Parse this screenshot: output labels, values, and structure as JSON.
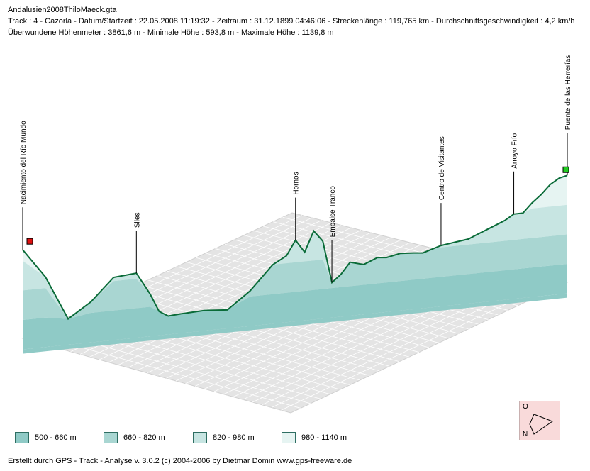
{
  "header": {
    "title": "Andalusien2008ThiloMaeck.gta",
    "line1": "Track : 4 - Cazorla - Datum/Startzeit : 22.05.2008 11:19:32 - Zeitraum : 31.12.1899 04:46:06 - Streckenlänge : 119,765 km - Durchschnittsgeschwindigkeit : 4,2 km/h",
    "line2": "Überwundene Höhenmeter : 3861,6 m  -  Minimale Höhe : 593,8 m  -  Maximale Höhe : 1139,8 m"
  },
  "chart_data": {
    "type": "area",
    "style": "3d elevation profile",
    "x_unit": "km",
    "y_unit": "m",
    "xlim": [
      0,
      119.765
    ],
    "ylim": [
      593.8,
      1139.8
    ],
    "x": [
      0,
      5,
      10,
      15,
      20,
      25,
      28,
      30,
      32,
      35,
      40,
      45,
      50,
      55,
      58,
      60,
      62,
      64,
      66,
      68,
      70,
      72,
      75,
      78,
      80,
      83,
      86,
      88,
      90,
      92,
      95,
      98,
      100,
      103,
      106,
      108,
      110,
      112,
      114,
      116,
      118,
      119.765
    ],
    "elevation_m": [
      1040,
      880,
      640,
      720,
      840,
      850,
      730,
      630,
      600,
      605,
      610,
      600,
      690,
      820,
      860,
      940,
      870,
      980,
      920,
      690,
      730,
      790,
      770,
      800,
      795,
      810,
      805,
      800,
      815,
      830,
      840,
      850,
      870,
      900,
      930,
      960,
      960,
      1010,
      1050,
      1100,
      1130,
      1139.8
    ],
    "waypoints": [
      {
        "name": "Nacimiento del Río Mundo",
        "x": 0
      },
      {
        "name": "Siles",
        "x": 25
      },
      {
        "name": "Hornos",
        "x": 60
      },
      {
        "name": "Embalse Tranco",
        "x": 68
      },
      {
        "name": "Centro de Visitantes",
        "x": 92
      },
      {
        "name": "Arroyo Frío",
        "x": 108
      },
      {
        "name": "Puente de las Herrerías",
        "x": 119.765
      }
    ],
    "start_marker_color": "#e01010",
    "end_marker_color": "#22cc22",
    "legend": [
      {
        "label": "500 - 660 m",
        "color": "#8fcac6"
      },
      {
        "label": "660 - 820 m",
        "color": "#a9d6d2"
      },
      {
        "label": "820 - 980 m",
        "color": "#c7e5e2"
      },
      {
        "label": "980 - 1140 m",
        "color": "#e6f4f2"
      }
    ],
    "bands_m": [
      500,
      660,
      820,
      980,
      1140
    ],
    "line_color": "#0a6b38",
    "grid": true
  },
  "compass": {
    "top": "O",
    "bottom": "N"
  },
  "footer": "Erstellt durch  GPS - Track - Analyse  v. 3.0.2  (c) 2004-2006 by Dietmar Domin  www.gps-freeware.de"
}
